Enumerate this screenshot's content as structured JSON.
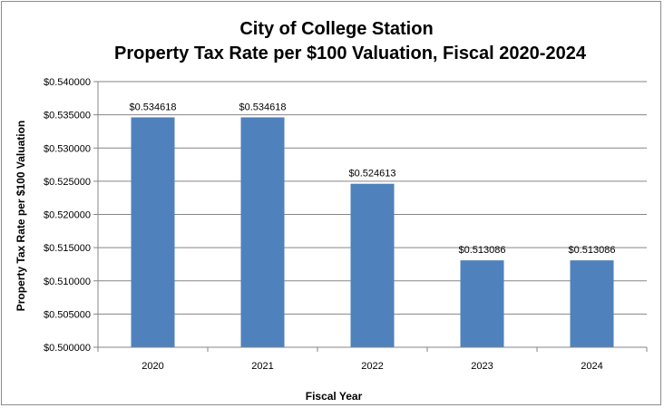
{
  "chart_data": {
    "type": "bar",
    "title_line1": "City of College Station",
    "title_line2": "Property Tax Rate per $100 Valuation, Fiscal 2020-2024",
    "xlabel": "Fiscal Year",
    "ylabel": "Property Tax Rate per $100 Valuation",
    "categories": [
      "2020",
      "2021",
      "2022",
      "2023",
      "2024"
    ],
    "values": [
      0.534618,
      0.534618,
      0.524613,
      0.513086,
      0.513086
    ],
    "data_labels": [
      "$0.534618",
      "$0.534618",
      "$0.524613",
      "$0.513086",
      "$0.513086"
    ],
    "ylim": [
      0.5,
      0.54
    ],
    "yticks": [
      0.5,
      0.505,
      0.51,
      0.515,
      0.52,
      0.525,
      0.53,
      0.535,
      0.54
    ],
    "ytick_labels": [
      "$0.500000",
      "$0.505000",
      "$0.510000",
      "$0.515000",
      "$0.520000",
      "$0.525000",
      "$0.530000",
      "$0.535000",
      "$0.540000"
    ],
    "grid": true,
    "bar_color": "#4F81BD",
    "grid_color": "#868686"
  }
}
